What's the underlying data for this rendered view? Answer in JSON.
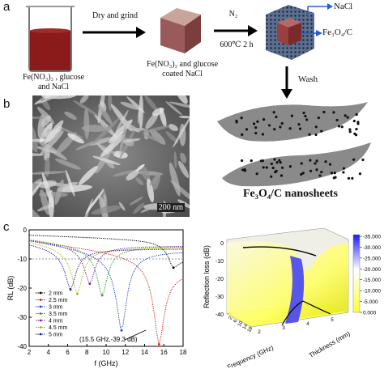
{
  "panel_a": {
    "letter": "a",
    "beaker_caption_line1": "Fe(NO₃)₃ , glucose",
    "beaker_caption_line2": "and NaCl",
    "step1_label": "Dry and grind",
    "cube_caption_line1": "Fe(NO₃)₃ and glucose",
    "cube_caption_line2": "coated NaCl",
    "step2_gas": "N₂",
    "step2_condition": "600℃ 2 h",
    "nacl_label": "NaCl",
    "fe3o4c_label": "Fe₃O₄/C",
    "wash_label": "Wash",
    "colors": {
      "beaker_liquid": "#8b1a1a",
      "cube_core": "#9a5a5a",
      "shell": "#3a4a6a"
    }
  },
  "panel_b": {
    "letter": "b",
    "scale_bar": "200 nm",
    "nanosheet_label": "Fe₃O₄/C nanosheets"
  },
  "panel_c": {
    "letter": "c",
    "chart_data": [
      {
        "type": "line",
        "xlabel": "f (GHz)",
        "ylabel": "RL (dB)",
        "xlim": [
          2,
          18
        ],
        "ylim": [
          -40,
          0
        ],
        "xticks": [
          "2",
          "4",
          "6",
          "8",
          "10",
          "12",
          "14",
          "16",
          "18"
        ],
        "yticks": [
          "0",
          "-10",
          "-20",
          "-30",
          "-40"
        ],
        "reference_line_y": -10,
        "annotation": "(15.5 GHz,-39.3 dB)",
        "legend_position": "bottom-left",
        "series": [
          {
            "name": "2 mm",
            "color": "#000000",
            "min_freq": 17.0,
            "min_rl": -13.0,
            "start_rl": -1.0,
            "end_rl": -10.0
          },
          {
            "name": "2.5 mm",
            "color": "#e41a1c",
            "min_freq": 15.5,
            "min_rl": -39.3,
            "start_rl": -1.0,
            "end_rl": -13.0
          },
          {
            "name": "3 mm",
            "color": "#1f3fbf",
            "min_freq": 11.6,
            "min_rl": -34.5,
            "start_rl": -1.0,
            "end_rl": -6.0
          },
          {
            "name": "3.5 mm",
            "color": "#1ea01e",
            "min_freq": 9.6,
            "min_rl": -22.5,
            "start_rl": -1.5,
            "end_rl": -5.0
          },
          {
            "name": "4 mm",
            "color": "#7a1fa2",
            "min_freq": 8.3,
            "min_rl": -18.5,
            "start_rl": -2.0,
            "end_rl": -5.0
          },
          {
            "name": "4.5 mm",
            "color": "#b5b500",
            "min_freq": 7.0,
            "min_rl": -22.0,
            "start_rl": -2.0,
            "end_rl": -5.5
          },
          {
            "name": "5 mm",
            "color": "#202090",
            "min_freq": 6.3,
            "min_rl": -20.5,
            "start_rl": -3.0,
            "end_rl": -6.0
          }
        ]
      },
      {
        "type": "surface3d",
        "zlabel": "Reflection loss (dB)",
        "xlabel": "Frequency (GHz)",
        "ylabel": "Thickness (mm)",
        "zticks": [
          "0",
          "-10",
          "-20",
          "-30",
          "-40"
        ],
        "frequency_ticks": [
          "2",
          "6",
          "10",
          "14",
          "18"
        ],
        "thickness_ticks": [
          "2",
          "3",
          "4",
          "5"
        ],
        "colorbar": [
          "-35.000",
          "-30.000",
          "-25.000",
          "-20.000",
          "-15.000",
          "-10.000",
          "-5.000",
          "0.000"
        ],
        "colors": {
          "low": "#1a1aff",
          "mid": "#ffffff",
          "high": "#ffff33"
        }
      }
    ]
  }
}
